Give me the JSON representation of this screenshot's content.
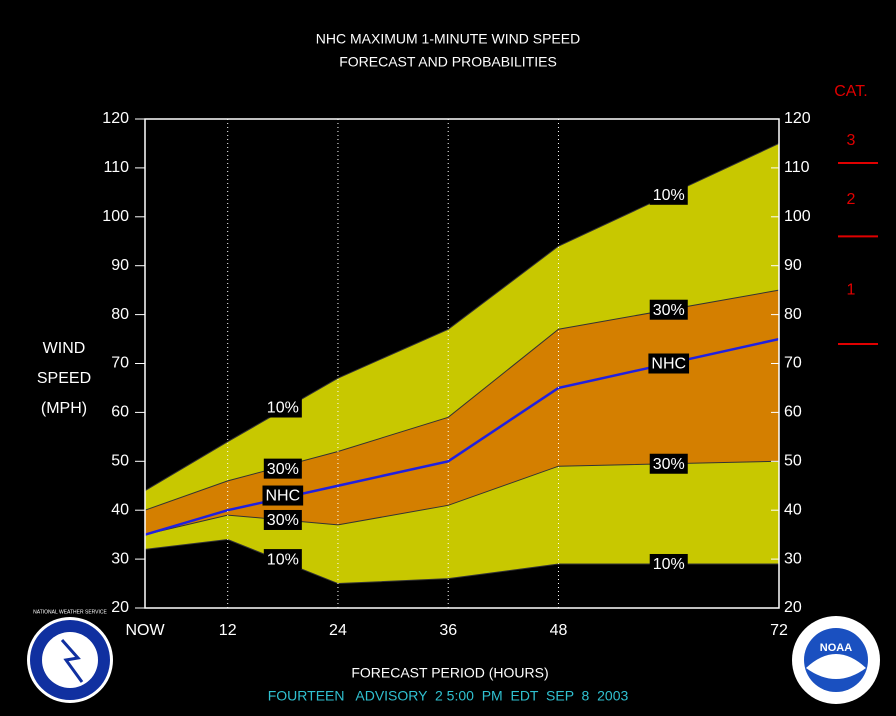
{
  "chart_data": {
    "type": "band",
    "title": [
      "NHC MAXIMUM 1-MINUTE WIND SPEED",
      "FORECAST AND PROBABILITIES"
    ],
    "ylabel": [
      "WIND",
      "SPEED",
      "(MPH)"
    ],
    "xlabel": "FORECAST PERIOD (HOURS)",
    "footer": "FOURTEEN   ADVISORY  2 5:00  PM  EDT  SEP  8  2003",
    "x": [
      3,
      12,
      24,
      36,
      48,
      72
    ],
    "xlim": [
      3,
      72
    ],
    "xticks": [
      {
        "value": 3,
        "label": "NOW"
      },
      12,
      24,
      36,
      48,
      72
    ],
    "ylim": [
      20,
      120
    ],
    "yticks": [
      20,
      30,
      40,
      50,
      60,
      70,
      80,
      90,
      100,
      110,
      120
    ],
    "grid": true,
    "bands": [
      {
        "color": "#c8c800",
        "upper": [
          44,
          54,
          67,
          77,
          94,
          115
        ],
        "lower": [
          32,
          34,
          25,
          26,
          29,
          29
        ]
      },
      {
        "color": "#d47f00",
        "upper": [
          40,
          46,
          52,
          59,
          77,
          85
        ],
        "lower": [
          35,
          39,
          37,
          41,
          49,
          50
        ]
      }
    ],
    "series": [
      {
        "name": "NHC",
        "color": "#2020e0",
        "values": [
          35,
          40,
          45,
          50,
          65,
          75
        ]
      }
    ],
    "annotations": [
      {
        "text": "10%",
        "x": 18,
        "y": 61
      },
      {
        "text": "30%",
        "x": 18,
        "y": 48.5
      },
      {
        "text": "NHC",
        "x": 18,
        "y": 43
      },
      {
        "text": "30%",
        "x": 18,
        "y": 38
      },
      {
        "text": "10%",
        "x": 18,
        "y": 30
      },
      {
        "text": "10%",
        "x": 60,
        "y": 104.5
      },
      {
        "text": "30%",
        "x": 60,
        "y": 81
      },
      {
        "text": "NHC",
        "x": 60,
        "y": 70
      },
      {
        "text": "30%",
        "x": 60,
        "y": 49.5
      },
      {
        "text": "10%",
        "x": 60,
        "y": 29
      }
    ],
    "cat": {
      "title": "CAT.",
      "color": "#e00000",
      "thresholds": [
        74,
        96,
        111
      ],
      "labels": [
        "1",
        "2",
        "3"
      ]
    },
    "logos": {
      "left": "NATIONAL WEATHER SERVICE",
      "right": "NOAA"
    }
  }
}
